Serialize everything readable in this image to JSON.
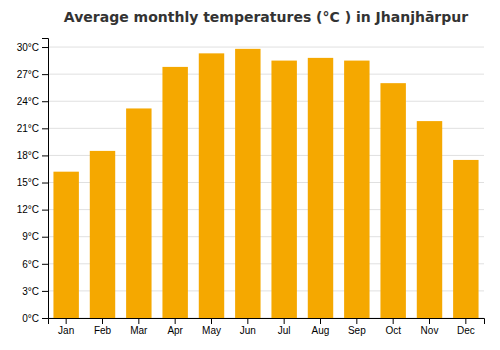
{
  "chart_data": {
    "type": "bar",
    "title": "Average monthly temperatures (°C ) in Jhanjhārpur",
    "categories": [
      "Jan",
      "Feb",
      "Mar",
      "Apr",
      "May",
      "Jun",
      "Jul",
      "Aug",
      "Sep",
      "Oct",
      "Nov",
      "Dec"
    ],
    "values": [
      16.2,
      18.5,
      23.2,
      27.8,
      29.3,
      29.8,
      28.5,
      28.8,
      28.5,
      26.0,
      21.8,
      17.5
    ],
    "color": "#F5A800",
    "ylim": [
      0,
      31
    ],
    "yticks": [
      {
        "value": 0,
        "label": "0°C"
      },
      {
        "value": 3,
        "label": "3°C"
      },
      {
        "value": 6,
        "label": "6°C"
      },
      {
        "value": 9,
        "label": "9°C"
      },
      {
        "value": 12,
        "label": "12°C"
      },
      {
        "value": 15,
        "label": "15°C"
      },
      {
        "value": 18,
        "label": "18°C"
      },
      {
        "value": 21,
        "label": "21°C"
      },
      {
        "value": 24,
        "label": "24°C"
      },
      {
        "value": 27,
        "label": "27°C"
      },
      {
        "value": 30,
        "label": "30°C"
      }
    ],
    "grid": true
  }
}
